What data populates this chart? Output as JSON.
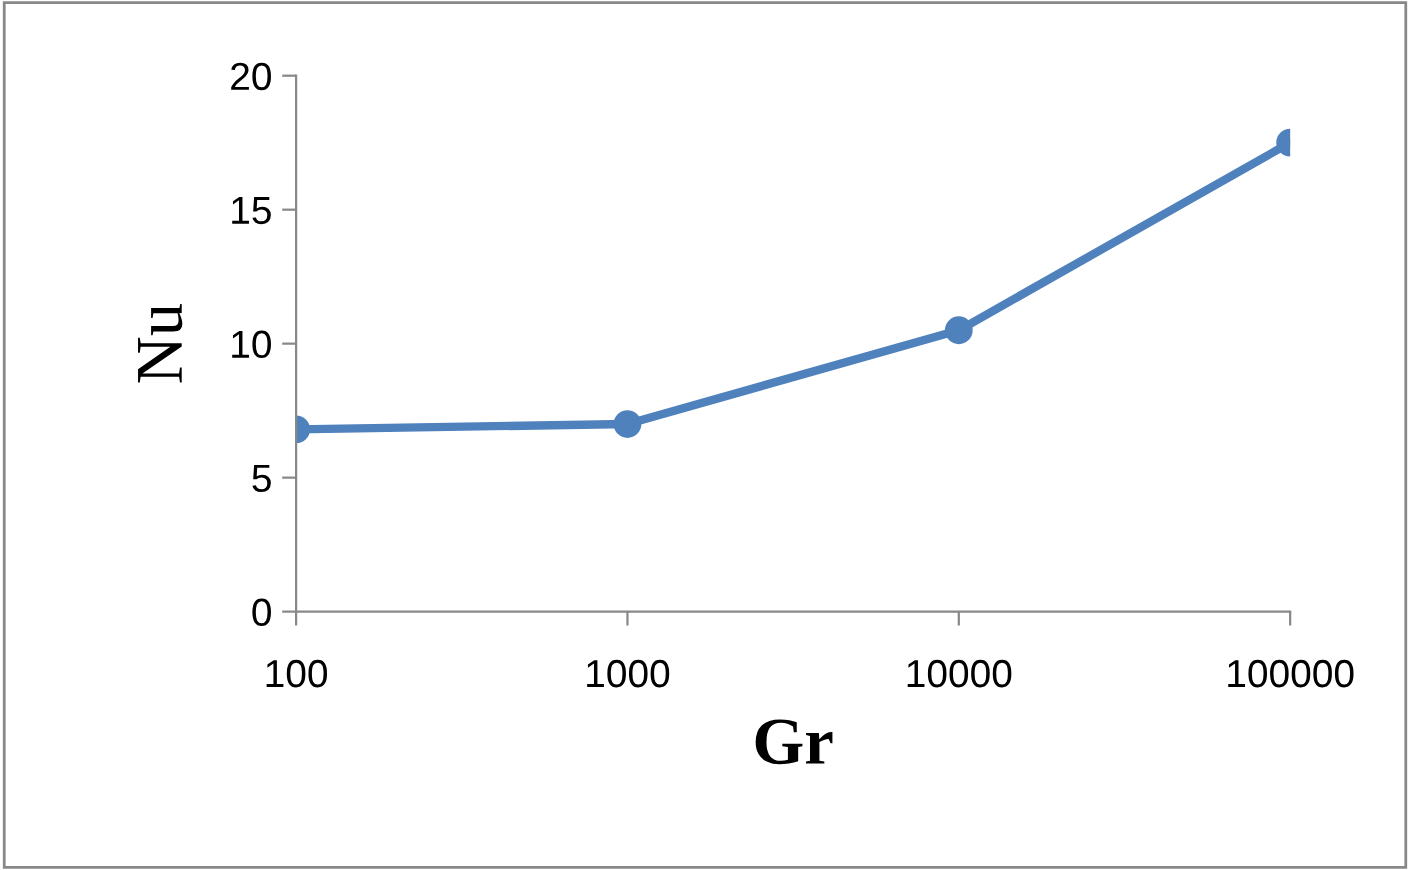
{
  "chart_data": {
    "type": "line",
    "xlabel": "Gr",
    "ylabel": "Nu",
    "log": "x",
    "x": [
      100,
      1000,
      10000,
      100000
    ],
    "series": [
      {
        "color": "#4f81bd",
        "values": [
          6.8,
          7.0,
          10.5,
          17.5
        ]
      }
    ],
    "xlim": [
      100,
      100000
    ],
    "xticks": [
      100,
      1000,
      10000,
      100000
    ],
    "ylim": [
      0,
      20
    ],
    "yticks": [
      0,
      5,
      10,
      15,
      20
    ],
    "grid": false,
    "legend": false,
    "marker": "circle",
    "line_style": "solid"
  }
}
